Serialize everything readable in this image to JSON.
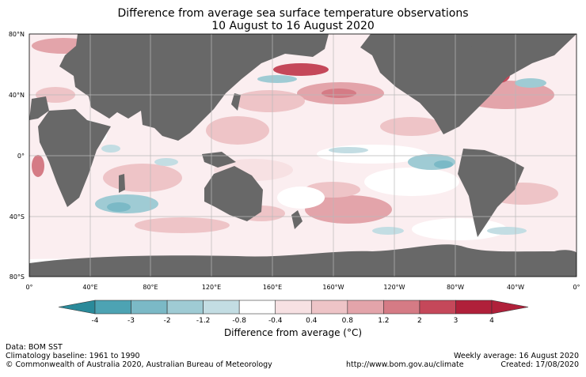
{
  "title": {
    "line1": "Difference from average sea surface temperature observations",
    "line2": "10 August to 16 August 2020"
  },
  "map": {
    "lat_labels": [
      "80°N",
      "40°N",
      "0°",
      "40°S",
      "80°S"
    ],
    "lon_labels": [
      "0°",
      "40°E",
      "80°E",
      "120°E",
      "160°E",
      "160°W",
      "120°W",
      "80°W",
      "40°W",
      "0°"
    ],
    "colors": {
      "land": "#686868",
      "ice": "#ffffff",
      "ocean_base": "#fbeef0",
      "grid": "#b8b8b8"
    }
  },
  "colorbar": {
    "label": "Difference from average (°C)",
    "ticks": [
      "-4",
      "-3",
      "-2",
      "-1.2",
      "-0.8",
      "-0.4",
      "0.4",
      "0.8",
      "1.2",
      "2",
      "3",
      "4"
    ],
    "colors": [
      "#2a8a9a",
      "#4da3b3",
      "#7bb9c6",
      "#9fcbd4",
      "#c3dde3",
      "#ffffff",
      "#f7e1e3",
      "#eec4c7",
      "#e3a4aa",
      "#d57b85",
      "#c5485a",
      "#b0203a"
    ]
  },
  "footer": {
    "data": "Data: BOM SST",
    "baseline": "Climatology baseline: 1961 to 1990",
    "copyright": "© Commonwealth of Australia 2020, Australian Bureau of Meteorology",
    "url": "http://www.bom.gov.au/climate",
    "weekly": "Weekly average: 16 August 2020",
    "created": "Created: 17/08/2020"
  }
}
